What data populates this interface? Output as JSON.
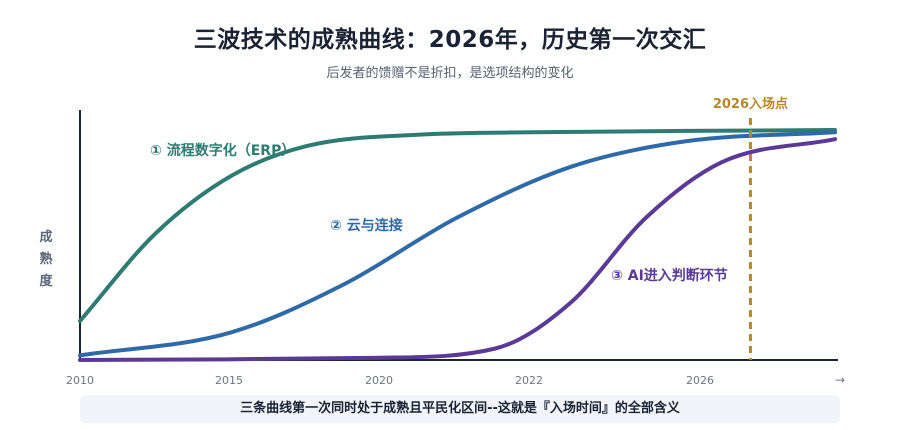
{
  "header": {
    "title": "三波技术的成熟曲线：2026年，历史第一次交汇",
    "subtitle": "后发者的馈赠不是折扣，是选项结构的变化"
  },
  "footer": {
    "text": "三条曲线第一次同时处于成熟且平民化区间--这就是『入场时间』的全部含义"
  },
  "chart_data": {
    "type": "line",
    "ylabel": "成熟度",
    "x_ticks": [
      "2010",
      "2015",
      "2020",
      "2022",
      "2026"
    ],
    "x_arrow": "→",
    "series": [
      {
        "name": "① 流程数字化（ERP）",
        "color": "#2e7b74",
        "points": [
          [
            0.0,
            0.17
          ],
          [
            0.1,
            0.55
          ],
          [
            0.2,
            0.8
          ],
          [
            0.3,
            0.93
          ],
          [
            0.45,
            0.98
          ],
          [
            0.6,
            0.99
          ],
          [
            1.0,
            1.0
          ]
        ]
      },
      {
        "name": "② 云与连接",
        "color": "#2f6aa8",
        "points": [
          [
            0.0,
            0.02
          ],
          [
            0.2,
            0.12
          ],
          [
            0.35,
            0.33
          ],
          [
            0.5,
            0.62
          ],
          [
            0.65,
            0.84
          ],
          [
            0.8,
            0.95
          ],
          [
            1.0,
            0.99
          ]
        ]
      },
      {
        "name": "③ AI进入判断环节",
        "color": "#5a3a96",
        "points": [
          [
            0.0,
            0.0
          ],
          [
            0.4,
            0.01
          ],
          [
            0.55,
            0.05
          ],
          [
            0.65,
            0.25
          ],
          [
            0.75,
            0.62
          ],
          [
            0.85,
            0.86
          ],
          [
            1.0,
            0.96
          ]
        ]
      }
    ],
    "marker": {
      "label": "2026入场点",
      "color": "#b8862d",
      "x": 0.888
    }
  }
}
